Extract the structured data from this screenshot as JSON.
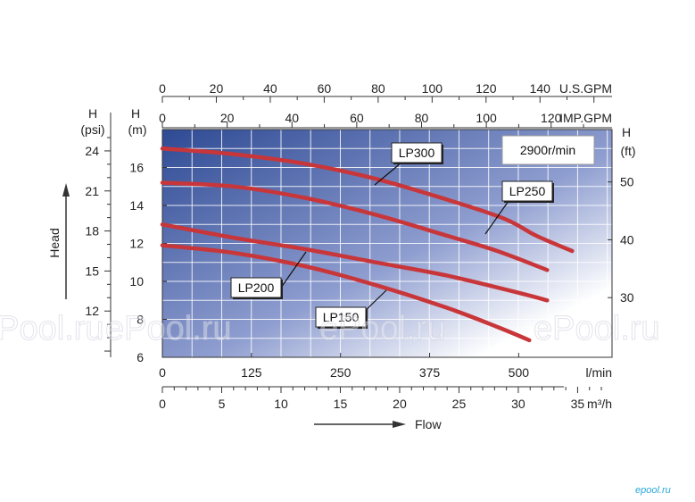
{
  "chart_data": {
    "type": "line",
    "annotation": "2900r/min",
    "x_axis_lpm": {
      "unit": "l/min",
      "ticks": [
        0,
        125,
        250,
        375,
        500
      ],
      "range": [
        0,
        631
      ]
    },
    "x_axis_m3h": {
      "unit": "m³/h",
      "label": "Flow",
      "ticks": [
        0,
        5,
        10,
        15,
        20,
        25,
        30,
        35
      ],
      "range": [
        0,
        37.9
      ]
    },
    "x_axis_usgpm": {
      "unit": "U.S.GPM",
      "ticks": [
        0,
        20,
        40,
        60,
        80,
        100,
        120,
        140
      ],
      "range": [
        0,
        166.7
      ]
    },
    "x_axis_impgpm": {
      "unit": "IMP.GPM",
      "ticks": [
        0,
        20,
        40,
        60,
        80,
        100,
        120
      ],
      "range": [
        0,
        138.8
      ]
    },
    "y_axis_m": {
      "unit": "H\n(m)",
      "ticks": [
        6,
        8,
        10,
        12,
        14,
        16
      ],
      "range": [
        6,
        18
      ]
    },
    "y_axis_psi": {
      "unit": "H\n(psi)",
      "label": "Head",
      "ticks": [
        12,
        15,
        18,
        21,
        24
      ]
    },
    "y_axis_ft": {
      "unit": "H\n(ft)",
      "ticks": [
        30,
        40,
        50
      ]
    },
    "grid": true,
    "series": [
      {
        "name": "LP300",
        "x": [
          0,
          100,
          200,
          300,
          400,
          480,
          525,
          575
        ],
        "y": [
          17.0,
          16.7,
          16.2,
          15.4,
          14.3,
          13.3,
          12.4,
          11.6
        ]
      },
      {
        "name": "LP250",
        "x": [
          0,
          100,
          200,
          300,
          400,
          470,
          540
        ],
        "y": [
          15.2,
          15.0,
          14.4,
          13.5,
          12.4,
          11.6,
          10.6
        ]
      },
      {
        "name": "LP200",
        "x": [
          0,
          100,
          200,
          300,
          400,
          500,
          540
        ],
        "y": [
          13.0,
          12.3,
          11.7,
          11.0,
          10.3,
          9.4,
          9.0
        ]
      },
      {
        "name": "LP150",
        "x": [
          0,
          100,
          200,
          300,
          400,
          470,
          515
        ],
        "y": [
          11.9,
          11.5,
          10.8,
          9.8,
          8.6,
          7.6,
          6.9
        ]
      }
    ]
  },
  "watermarks": [
    "ePool.ru",
    "ePool.ru",
    "ePool.ru",
    "ePool.ru",
    "ePool.ru"
  ],
  "brand": "epool.ru"
}
